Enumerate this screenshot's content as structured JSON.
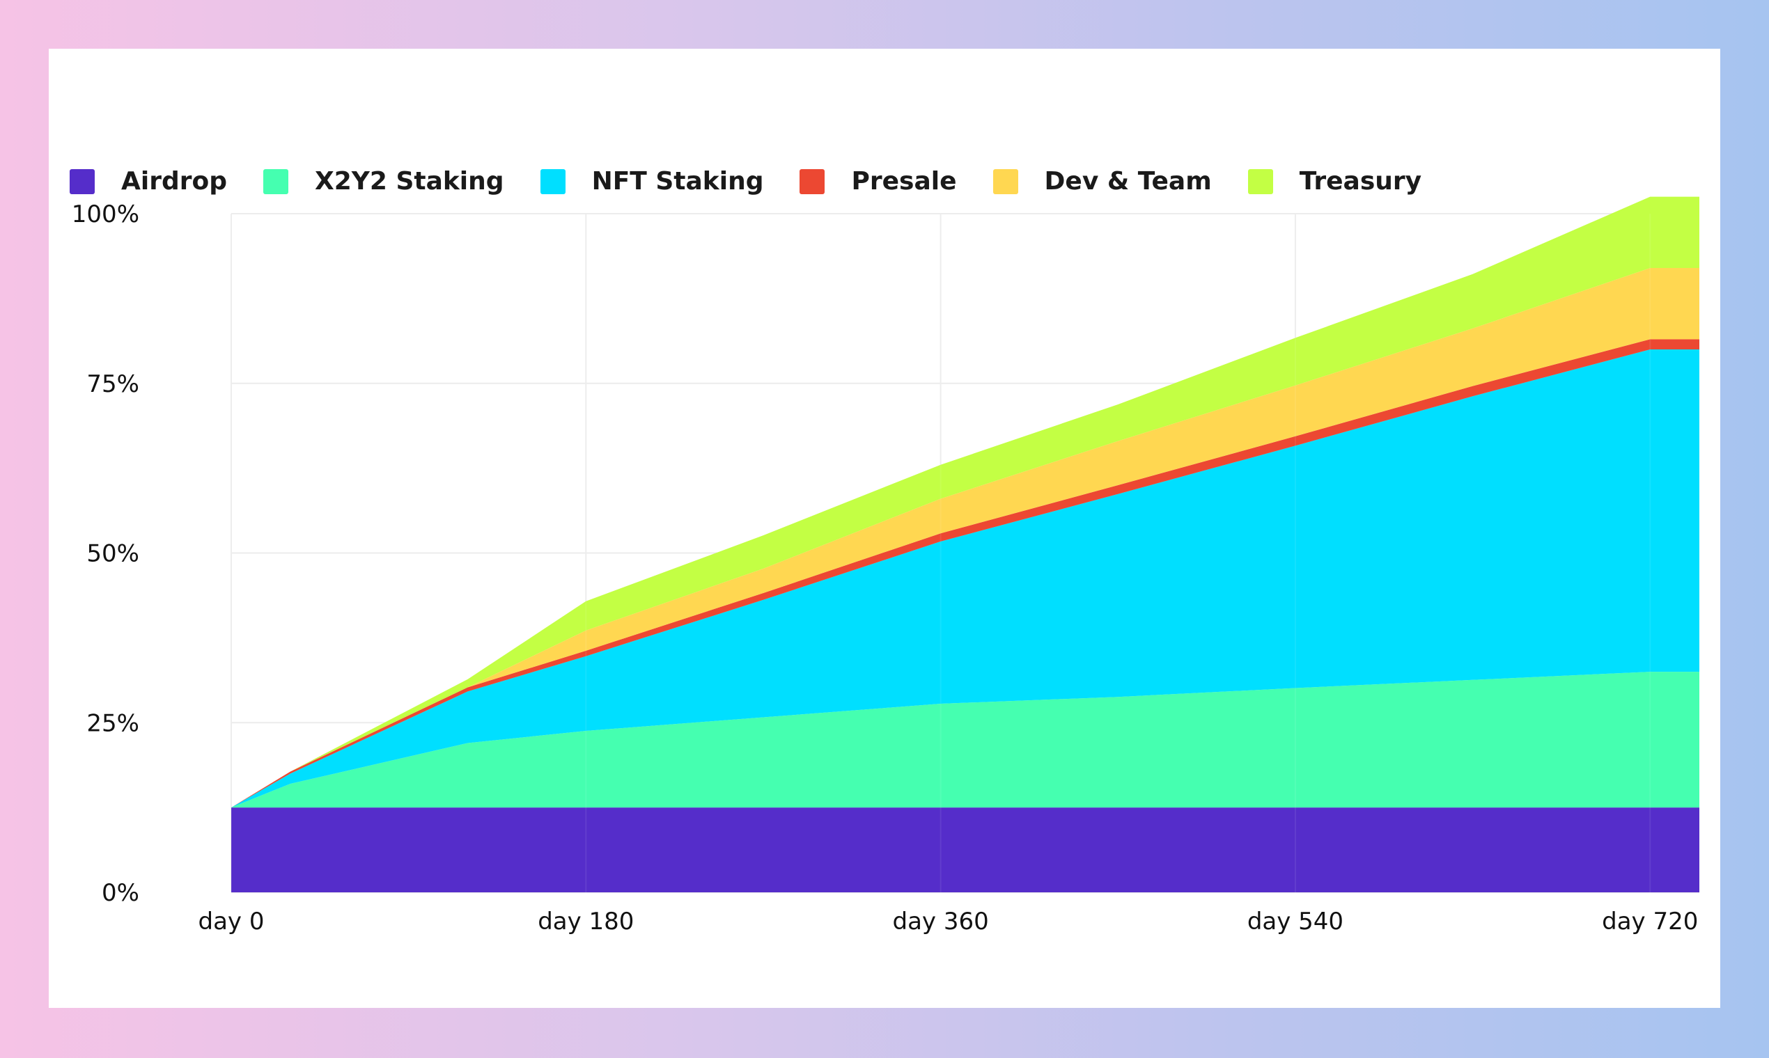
{
  "chart_data": {
    "type": "area",
    "stacked": true,
    "title": "",
    "xlabel": "",
    "ylabel": "",
    "x": [
      0,
      30,
      120,
      180,
      270,
      360,
      450,
      540,
      630,
      720,
      745
    ],
    "x_ticks": [
      {
        "value": 0,
        "label": "day 0"
      },
      {
        "value": 180,
        "label": "day 180"
      },
      {
        "value": 360,
        "label": "day 360"
      },
      {
        "value": 540,
        "label": "day 540"
      },
      {
        "value": 720,
        "label": "day 720"
      }
    ],
    "y_ticks": [
      {
        "value": 0,
        "label": "0%"
      },
      {
        "value": 25,
        "label": "25%"
      },
      {
        "value": 50,
        "label": "50%"
      },
      {
        "value": 75,
        "label": "75%"
      },
      {
        "value": 100,
        "label": "100%"
      }
    ],
    "xlim": [
      0,
      745
    ],
    "ylim": [
      0,
      100
    ],
    "grid": true,
    "legend_position": "top-left",
    "series": [
      {
        "name": "Airdrop",
        "color": "#552dca",
        "values": [
          12.5,
          12.5,
          12.5,
          12.5,
          12.5,
          12.5,
          12.5,
          12.5,
          12.5,
          12.5,
          12.5
        ]
      },
      {
        "name": "X2Y2 Staking",
        "color": "#45ffb0",
        "values": [
          0,
          3.5,
          9.5,
          11.3,
          13.3,
          15.3,
          16.3,
          17.6,
          18.8,
          20.0,
          20.0
        ]
      },
      {
        "name": "NFT Staking",
        "color": "#00dfff",
        "values": [
          0,
          1.5,
          7.6,
          11.0,
          17.3,
          23.9,
          29.9,
          35.7,
          41.8,
          47.5,
          47.5
        ]
      },
      {
        "name": "Presale",
        "color": "#ec4832",
        "values": [
          0,
          0.3,
          0.6,
          0.8,
          1.0,
          1.2,
          1.3,
          1.4,
          1.5,
          1.5,
          1.5
        ]
      },
      {
        "name": "Dev & Team",
        "color": "#ffd751",
        "values": [
          0,
          0,
          0,
          3.0,
          3.6,
          5.1,
          6.5,
          7.5,
          8.5,
          10.5,
          10.5
        ]
      },
      {
        "name": "Treasury",
        "color": "#c3ff44",
        "values": [
          0,
          0,
          1.2,
          4.3,
          4.9,
          5.0,
          5.4,
          7.0,
          8.0,
          10.5,
          10.5
        ]
      }
    ]
  }
}
